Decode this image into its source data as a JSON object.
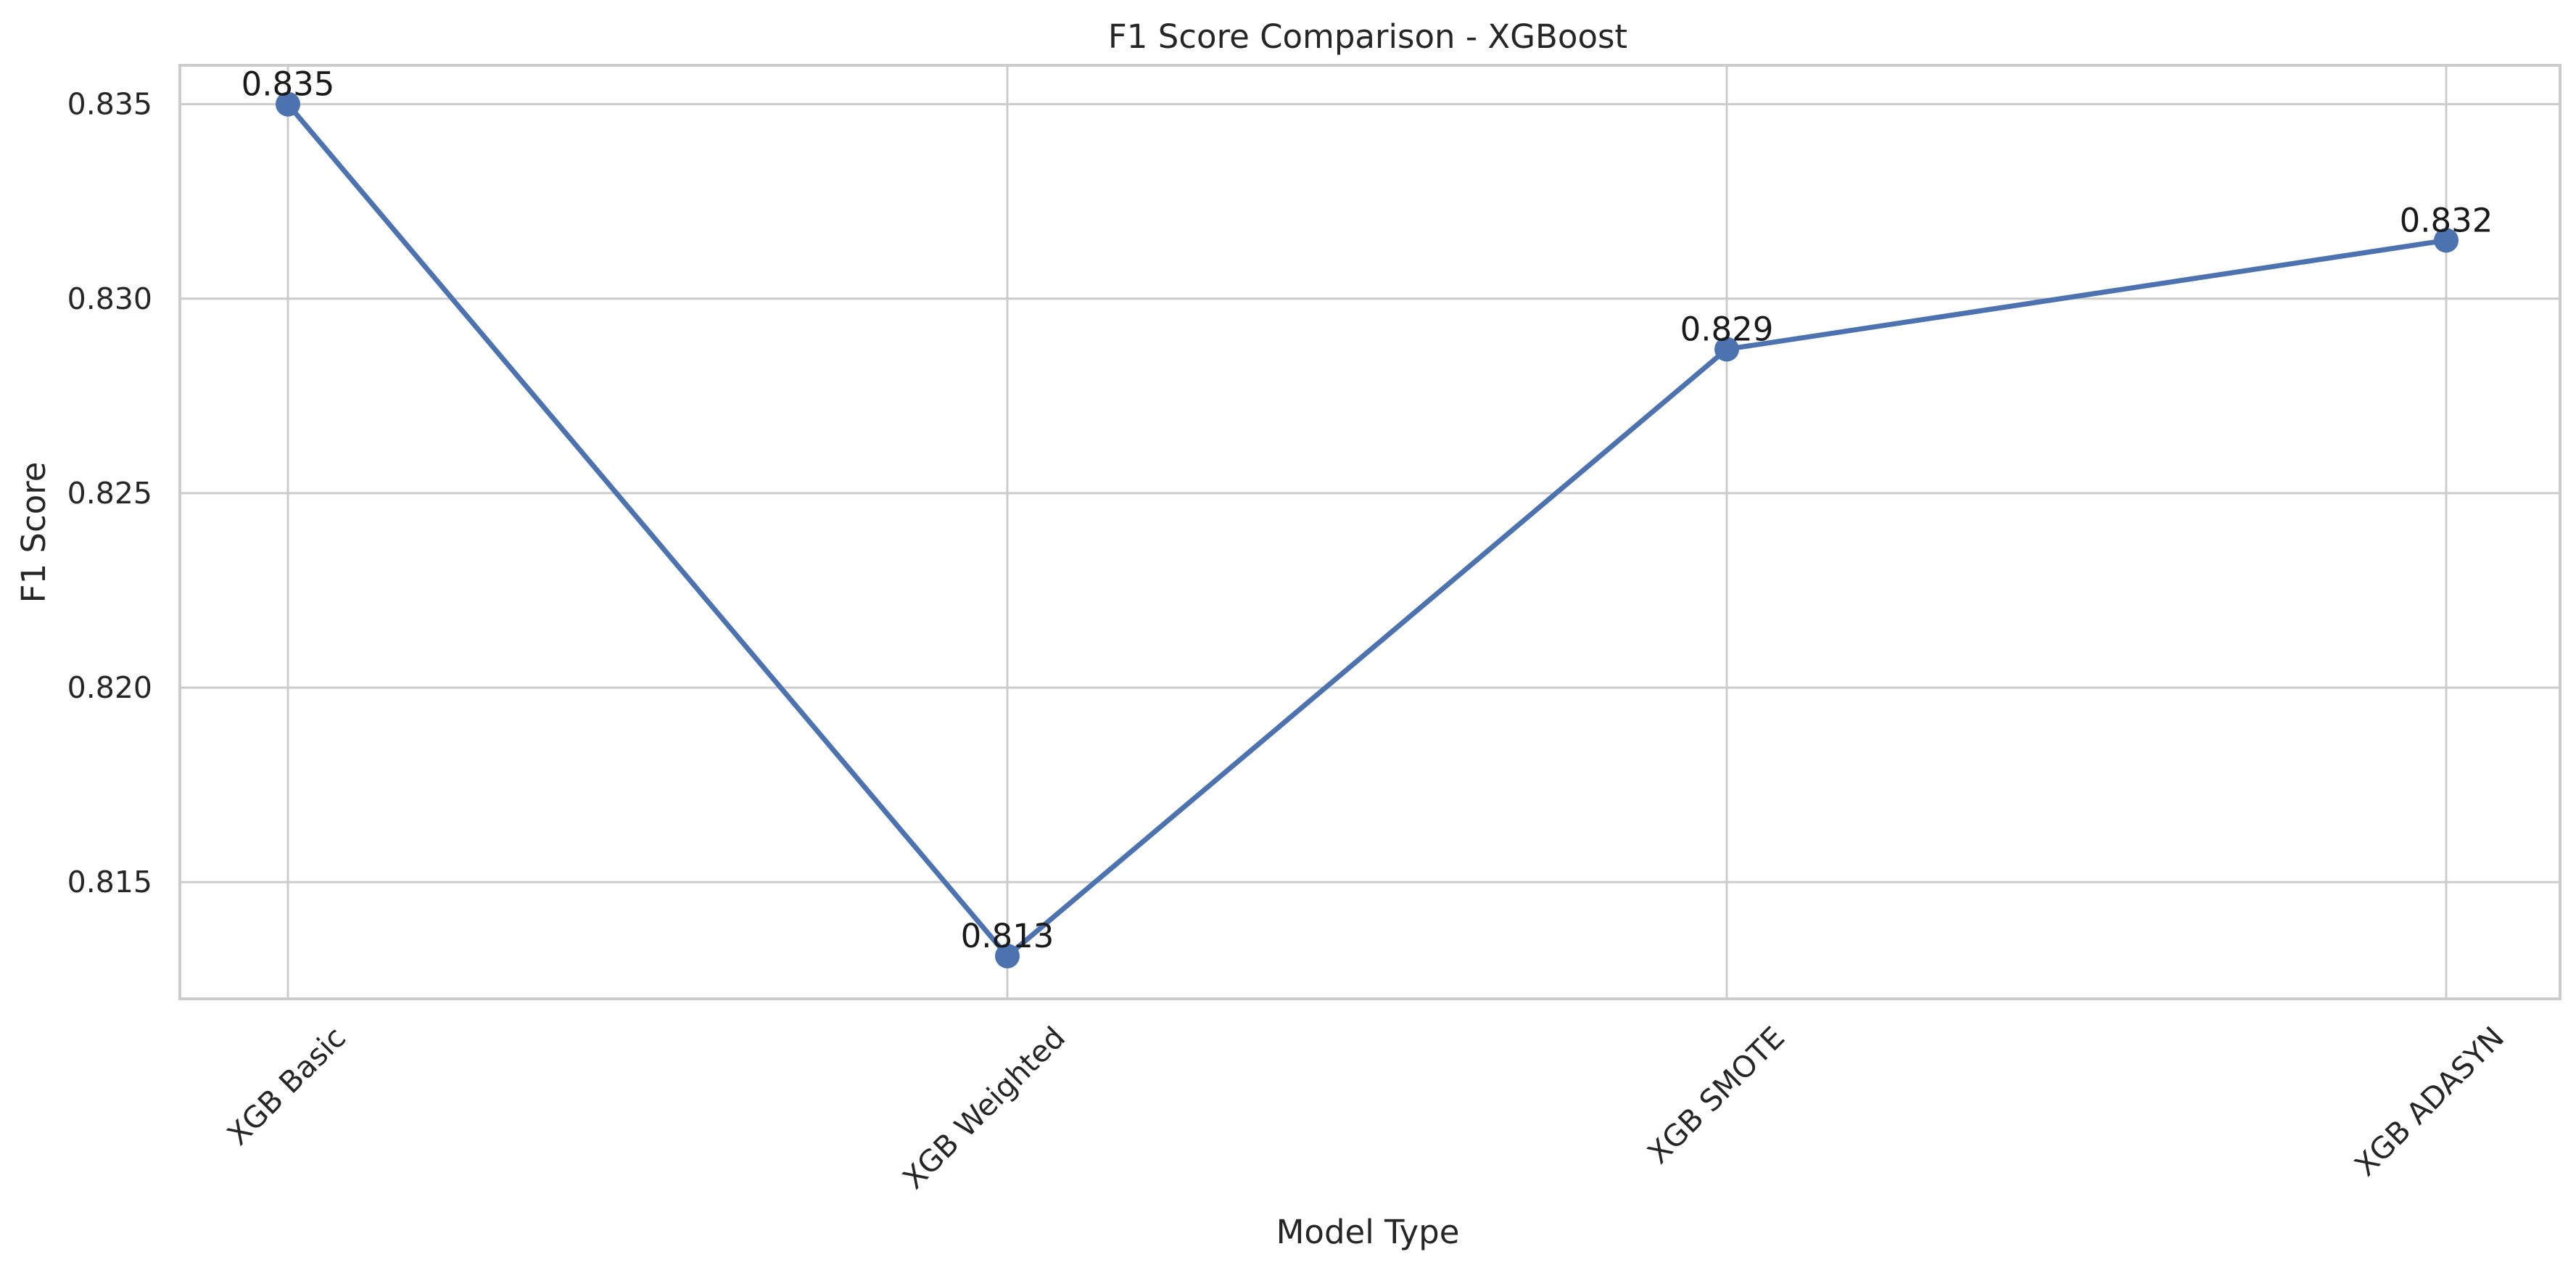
{
  "chart_data": {
    "type": "line",
    "title": "F1 Score Comparison - XGBoost",
    "xlabel": "Model Type",
    "ylabel": "F1 Score",
    "categories": [
      "XGB Basic",
      "XGB Weighted",
      "XGB SMOTE",
      "XGB ADASYN"
    ],
    "series": [
      {
        "values": [
          0.835,
          0.8131,
          0.8287,
          0.8315
        ],
        "labels": [
          "0.835",
          "0.813",
          "0.829",
          "0.832"
        ]
      }
    ],
    "ylim": [
      0.812,
      0.836
    ],
    "yticks": [
      0.815,
      0.82,
      0.825,
      0.83,
      0.835
    ],
    "ytick_labels": [
      "0.815",
      "0.820",
      "0.825",
      "0.830",
      "0.835"
    ],
    "grid": true,
    "line_color": "#4c72b0",
    "grid_color": "#cccccc",
    "frame_color": "#cccccc",
    "background_color": "#ffffff"
  }
}
